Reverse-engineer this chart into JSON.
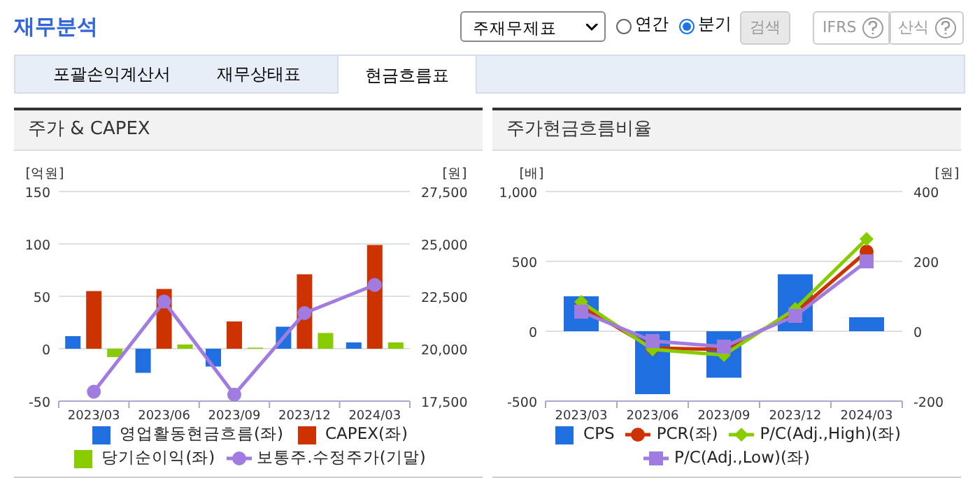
{
  "chart_data": [
    {
      "type": "other",
      "title": "재무분석",
      "annotations": [
        "주재무제표",
        "연간",
        "분기",
        "검색",
        "IFRS",
        "산식",
        "포괄손익계산서",
        "재무상태표",
        "현금흐름표"
      ]
    },
    {
      "type": "bar",
      "title": "주가 & CAPEX",
      "ylabel": "[억원]",
      "y2label": "[원]",
      "categories": [
        "2023/03",
        "2023/06",
        "2023/09",
        "2023/12",
        "2024/03"
      ],
      "series": [
        {
          "name": "영업활동현금흐름(좌)",
          "color": "#1f6fe0",
          "values": [
            12,
            -23,
            -17,
            21,
            6
          ]
        },
        {
          "name": "CAPEX(좌)",
          "color": "#cc3300",
          "values": [
            55,
            57,
            26,
            71,
            99
          ]
        },
        {
          "name": "당기순이익(좌)",
          "color": "#88cc00",
          "values": [
            -8,
            4,
            1,
            15,
            6
          ]
        },
        {
          "name": "보통주.수정주가(기말)",
          "type": "line",
          "axis": "y2",
          "marker": "circle",
          "color": "#a07ce0",
          "values": [
            17950,
            22250,
            17810,
            21700,
            23040
          ]
        }
      ],
      "ylim": [
        -50,
        150
      ],
      "yticks": [
        -50,
        0,
        50,
        100,
        150
      ],
      "y2lim": [
        17500,
        27500
      ],
      "y2ticks": [
        {
          "value": 17500,
          "label": "17,500"
        },
        {
          "value": 20000,
          "label": "20,000"
        },
        {
          "value": 22500,
          "label": "22,500"
        },
        {
          "value": 25000,
          "label": "25,000"
        },
        {
          "value": 27500,
          "label": "27,500"
        }
      ],
      "grid": "y",
      "legend": "bottom"
    },
    {
      "type": "bar",
      "title": "주가현금흐름비율",
      "ylabel": "[배]",
      "y2label": "[원]",
      "categories": [
        "2023/03",
        "2023/06",
        "2023/09",
        "2023/12",
        "2024/03"
      ],
      "series": [
        {
          "name": "CPS",
          "axis": "y2",
          "color": "#1f6fe0",
          "values": [
            100,
            -180,
            -133,
            163,
            40
          ]
        },
        {
          "name": "PCR(좌)",
          "type": "line",
          "marker": "circle",
          "color": "#cc3300",
          "values": [
            180,
            -120,
            -130,
            130,
            570
          ]
        },
        {
          "name": "P/C(Adj.,High)(좌)",
          "type": "line",
          "marker": "diamond",
          "color": "#88cc00",
          "values": [
            210,
            -130,
            -170,
            160,
            660
          ]
        },
        {
          "name": "P/C(Adj.,Low)(좌)",
          "type": "line",
          "marker": "square",
          "color": "#a07ce0",
          "values": [
            140,
            -70,
            -110,
            110,
            500
          ]
        }
      ],
      "ylim": [
        -500,
        1000
      ],
      "yticks": [
        -500,
        0,
        500,
        {
          "value": 1000,
          "label": "1,000"
        }
      ],
      "y2lim": [
        -200,
        400
      ],
      "y2ticks": [
        -200,
        0,
        200,
        400
      ],
      "grid": "y",
      "legend": "bottom"
    }
  ]
}
